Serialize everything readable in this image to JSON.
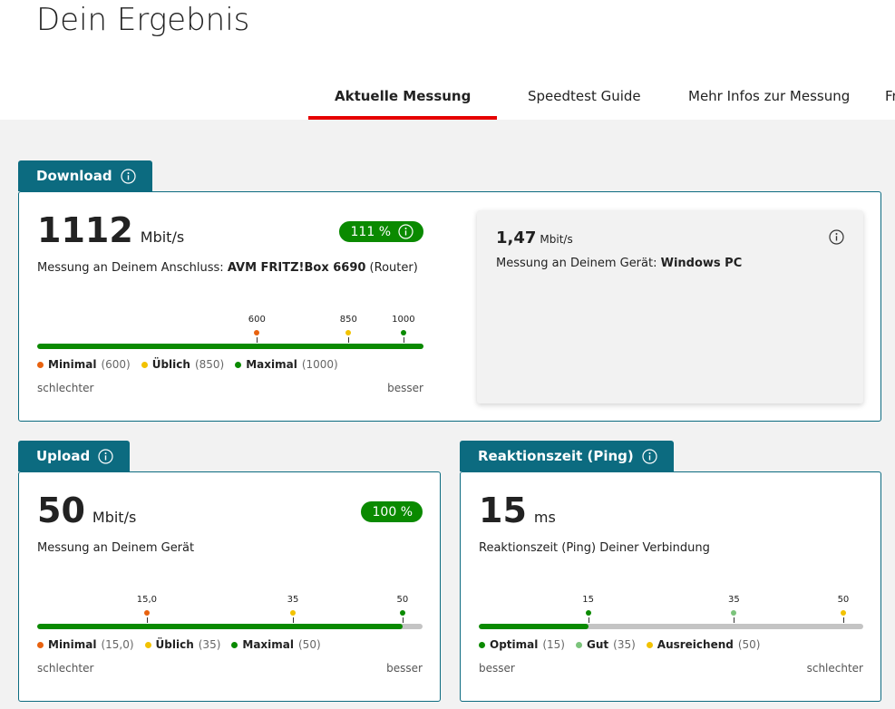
{
  "header": {
    "title": "Dein Ergebnis"
  },
  "tabs": [
    {
      "label": "Aktuelle Messung",
      "active": true
    },
    {
      "label": "Speedtest Guide"
    },
    {
      "label": "Mehr Infos zur Messung"
    },
    {
      "label": "Fr"
    }
  ],
  "cards": [
    {
      "title": "Download",
      "value": 1112,
      "unit": "Mbit/s",
      "badge": "111 %",
      "badge_info": true,
      "description": [
        "Messung an Deinem Anschluss: ",
        "AVM FRITZ!Box 6690",
        " (Router)"
      ],
      "scale": {
        "markers": [
          {
            "value": 600,
            "color": "#e8620f"
          },
          {
            "value": 850,
            "color": "#f2c200"
          },
          {
            "value": 1000,
            "color": "#0a8a00"
          }
        ],
        "legend": [
          {
            "name": "Minimal",
            "value": "(600)",
            "color": "#e8620f"
          },
          {
            "name": "Üblich",
            "value": "(850)",
            "color": "#f2c200"
          },
          {
            "name": "Maximal",
            "value": "(1000)",
            "color": "#0a8a00"
          }
        ],
        "start": "schlechter",
        "end": "besser"
      },
      "device": {
        "value": "1,47",
        "unit": "Mbit/s",
        "description": [
          "Messung an Deinem Gerät: ",
          "Windows PC"
        ]
      }
    },
    {
      "title": "Upload",
      "value": 50,
      "unit": "Mbit/s",
      "badge": "100 %",
      "badge_info": false,
      "description": [
        "Messung an Deinem Gerät"
      ],
      "scale": {
        "markers": [
          {
            "value": 15,
            "label": "15,0",
            "color": "#e8620f"
          },
          {
            "value": 35,
            "color": "#f2c200"
          },
          {
            "value": 50,
            "color": "#0a8a00"
          }
        ],
        "legend": [
          {
            "name": "Minimal",
            "value": "(15,0)",
            "color": "#e8620f"
          },
          {
            "name": "Üblich",
            "value": "(35)",
            "color": "#f2c200"
          },
          {
            "name": "Maximal",
            "value": "(50)",
            "color": "#0a8a00"
          }
        ],
        "start": "schlechter",
        "end": "besser"
      }
    },
    {
      "title": "Reaktionszeit (Ping)",
      "value": 15,
      "unit": "ms",
      "description": [
        "Reaktionszeit (Ping) Deiner Verbindung"
      ],
      "scale": {
        "markers": [
          {
            "value": 15,
            "color": "#0a8a00"
          },
          {
            "value": 35,
            "color": "#7cc47c"
          },
          {
            "value": 50,
            "color": "#f2c200"
          }
        ],
        "legend": [
          {
            "name": "Optimal",
            "value": "(15)",
            "color": "#0a8a00"
          },
          {
            "name": "Gut",
            "value": "(35)",
            "color": "#7cc47c"
          },
          {
            "name": "Ausreichend",
            "value": "(50)",
            "color": "#f2c200"
          }
        ],
        "start": "besser",
        "end": "schlechter"
      }
    }
  ]
}
